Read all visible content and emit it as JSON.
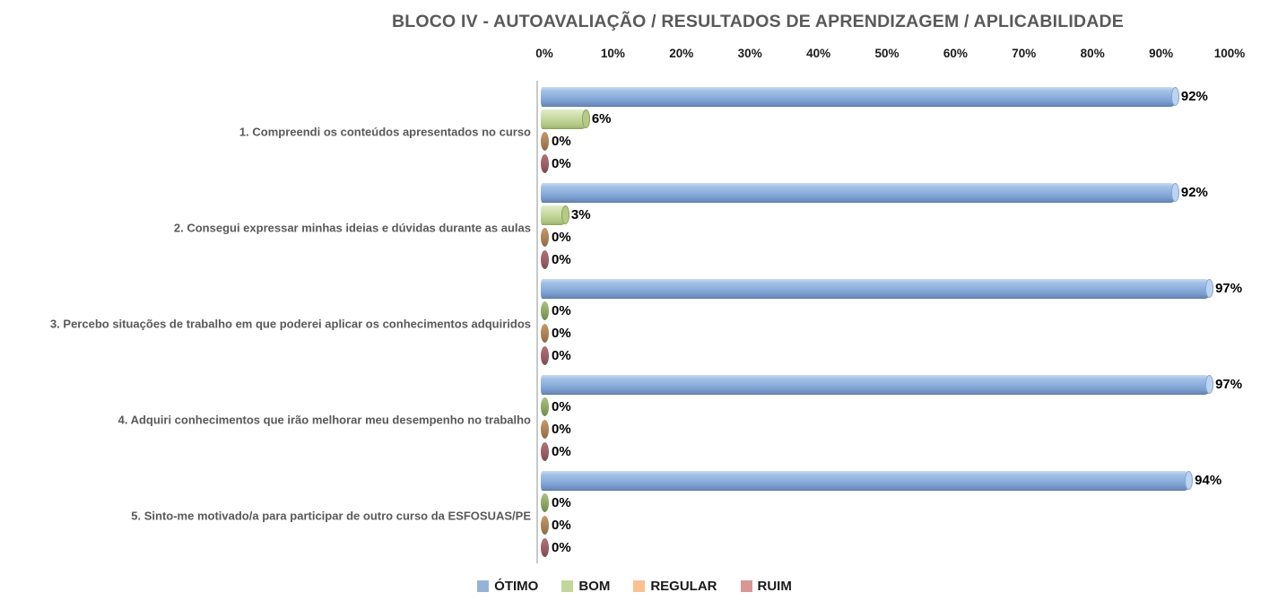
{
  "title": "BLOCO IV - AUTOAVALIAÇÃO / RESULTADOS DE APRENDIZAGEM / APLICABILIDADE",
  "chart_data": {
    "type": "bar",
    "orientation": "horizontal",
    "title": "BLOCO IV - AUTOAVALIAÇÃO / RESULTADOS DE APRENDIZAGEM / APLICABILIDADE",
    "categories": [
      "1. Compreendi os conteúdos apresentados no curso",
      "2. Consegui expressar minhas ideias e dúvidas durante as aulas",
      "3. Percebo situações de trabalho em que poderei aplicar os conhecimentos adquiridos",
      "4. Adquiri conhecimentos que irão melhorar meu desempenho no trabalho",
      "5. Sinto-me motivado/a para participar de outro curso da ESFOSUAS/PE"
    ],
    "series": [
      {
        "name": "ÓTIMO",
        "color": "#95B3D7",
        "values": [
          92,
          92,
          97,
          97,
          94
        ]
      },
      {
        "name": "BOM",
        "color": "#C3D69B",
        "values": [
          6,
          3,
          0,
          0,
          0
        ]
      },
      {
        "name": "REGULAR",
        "color": "#FAC090",
        "values": [
          0,
          0,
          0,
          0,
          0
        ]
      },
      {
        "name": "RUIM",
        "color": "#D99694",
        "values": [
          0,
          0,
          0,
          0,
          0
        ]
      }
    ],
    "x_axis": {
      "position": "top",
      "min": 0,
      "max": 100,
      "ticks": [
        "0%",
        "10%",
        "20%",
        "30%",
        "40%",
        "50%",
        "60%",
        "70%",
        "80%",
        "90%",
        "100%"
      ]
    },
    "value_label_suffix": "%",
    "grid": false,
    "legend_position": "bottom",
    "background": "#FFFFFF"
  }
}
